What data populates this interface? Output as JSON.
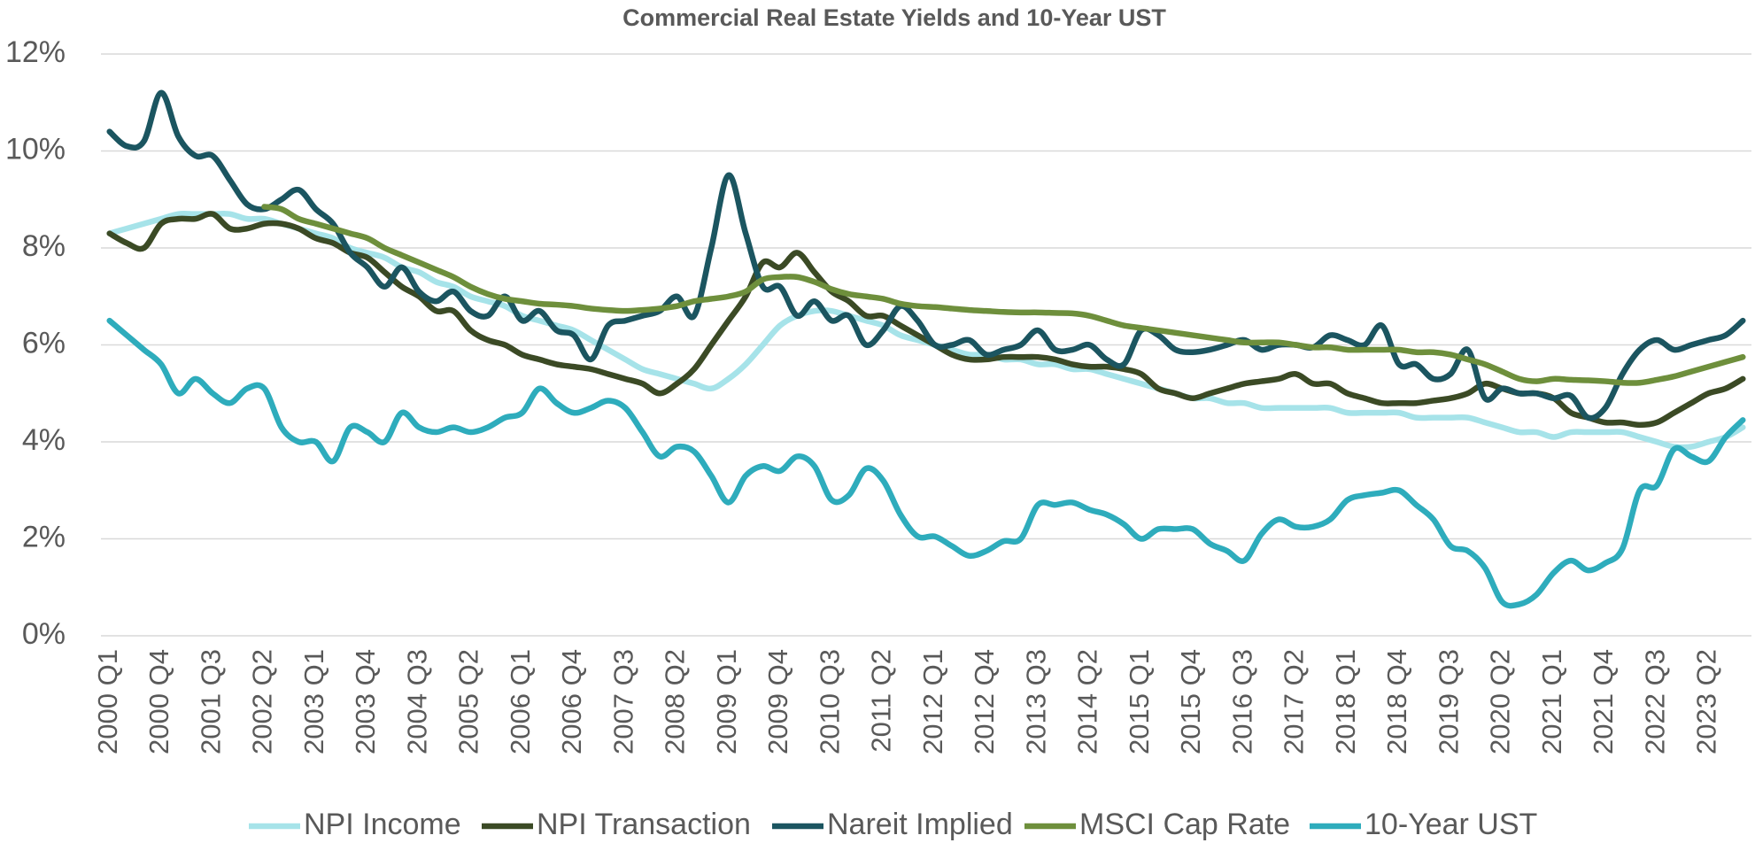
{
  "chart_data": {
    "type": "line",
    "title": "Commercial Real Estate Yields and 10-Year UST",
    "categories": [
      "2000 Q1",
      null,
      null,
      "2000 Q4",
      null,
      null,
      "2001 Q3",
      null,
      null,
      "2002 Q2",
      null,
      null,
      "2003 Q1",
      null,
      null,
      "2003 Q4",
      null,
      null,
      "2004 Q3",
      null,
      null,
      "2005 Q2",
      null,
      null,
      "2006 Q1",
      null,
      null,
      "2006 Q4",
      null,
      null,
      "2007 Q3",
      null,
      null,
      "2008 Q2",
      null,
      null,
      "2009 Q1",
      null,
      null,
      "2009 Q4",
      null,
      null,
      "2010 Q3",
      null,
      null,
      "2011 Q2",
      null,
      null,
      "2012 Q1",
      null,
      null,
      "2012 Q4",
      null,
      null,
      "2013 Q3",
      null,
      null,
      "2014 Q2",
      null,
      null,
      "2015 Q1",
      null,
      null,
      "2015 Q4",
      null,
      null,
      "2016 Q3",
      null,
      null,
      "2017 Q2",
      null,
      null,
      "2018 Q1",
      null,
      null,
      "2018 Q4",
      null,
      null,
      "2019 Q3",
      null,
      null,
      "2020 Q2",
      null,
      null,
      "2021 Q1",
      null,
      null,
      "2021 Q4",
      null,
      null,
      "2022 Q3",
      null,
      null,
      "2023 Q2",
      null,
      null
    ],
    "series": [
      {
        "name": "NPI Income",
        "color": "#a6e3e9",
        "values": [
          8.3,
          8.4,
          8.5,
          8.6,
          8.7,
          8.7,
          8.7,
          8.7,
          8.6,
          8.6,
          8.5,
          8.4,
          8.3,
          8.2,
          8.0,
          7.9,
          7.8,
          7.6,
          7.5,
          7.3,
          7.2,
          7.0,
          6.9,
          6.8,
          6.6,
          6.5,
          6.4,
          6.3,
          6.1,
          5.9,
          5.7,
          5.5,
          5.4,
          5.3,
          5.2,
          5.1,
          5.3,
          5.6,
          6.0,
          6.4,
          6.6,
          6.7,
          6.7,
          6.6,
          6.5,
          6.4,
          6.2,
          6.1,
          6.0,
          5.9,
          5.8,
          5.8,
          5.7,
          5.7,
          5.6,
          5.6,
          5.5,
          5.5,
          5.4,
          5.3,
          5.2,
          5.1,
          5.0,
          4.9,
          4.9,
          4.8,
          4.8,
          4.7,
          4.7,
          4.7,
          4.7,
          4.7,
          4.6,
          4.6,
          4.6,
          4.6,
          4.5,
          4.5,
          4.5,
          4.5,
          4.4,
          4.3,
          4.2,
          4.2,
          4.1,
          4.2,
          4.2,
          4.2,
          4.2,
          4.1,
          4.0,
          3.9,
          3.9,
          4.0,
          4.1,
          4.3
        ]
      },
      {
        "name": "NPI Transaction",
        "color": "#3b4a25",
        "values": [
          8.3,
          8.1,
          8.0,
          8.5,
          8.6,
          8.6,
          8.7,
          8.4,
          8.4,
          8.5,
          8.5,
          8.4,
          8.2,
          8.1,
          7.9,
          7.8,
          7.5,
          7.2,
          7.0,
          6.7,
          6.7,
          6.3,
          6.1,
          6.0,
          5.8,
          5.7,
          5.6,
          5.55,
          5.5,
          5.4,
          5.3,
          5.2,
          5.0,
          5.2,
          5.5,
          6.0,
          6.5,
          7.0,
          7.7,
          7.6,
          7.9,
          7.5,
          7.1,
          6.9,
          6.6,
          6.6,
          6.4,
          6.2,
          6.0,
          5.8,
          5.7,
          5.7,
          5.75,
          5.75,
          5.75,
          5.7,
          5.6,
          5.55,
          5.55,
          5.5,
          5.4,
          5.1,
          5.0,
          4.9,
          5.0,
          5.1,
          5.2,
          5.25,
          5.3,
          5.4,
          5.2,
          5.2,
          5.0,
          4.9,
          4.8,
          4.8,
          4.8,
          4.85,
          4.9,
          5.0,
          5.2,
          5.1,
          5.0,
          5.0,
          4.9,
          4.6,
          4.5,
          4.4,
          4.4,
          4.35,
          4.4,
          4.6,
          4.8,
          5.0,
          5.1,
          5.3
        ]
      },
      {
        "name": "Nareit Implied",
        "color": "#1b5560",
        "values": [
          10.4,
          10.1,
          10.2,
          11.2,
          10.3,
          9.9,
          9.9,
          9.4,
          8.9,
          8.8,
          9.0,
          9.2,
          8.8,
          8.5,
          7.9,
          7.6,
          7.2,
          7.6,
          7.1,
          6.9,
          7.1,
          6.7,
          6.6,
          7.0,
          6.5,
          6.7,
          6.3,
          6.2,
          5.7,
          6.4,
          6.5,
          6.6,
          6.7,
          7.0,
          6.6,
          8.0,
          9.5,
          8.3,
          7.2,
          7.2,
          6.6,
          6.9,
          6.5,
          6.6,
          6.0,
          6.3,
          6.8,
          6.5,
          6.0,
          6.0,
          6.1,
          5.8,
          5.9,
          6.0,
          6.3,
          5.9,
          5.9,
          6.0,
          5.7,
          5.6,
          6.3,
          6.2,
          5.9,
          5.85,
          5.9,
          6.0,
          6.1,
          5.9,
          6.0,
          6.0,
          5.95,
          6.2,
          6.1,
          6.0,
          6.4,
          5.6,
          5.6,
          5.3,
          5.4,
          5.9,
          4.9,
          5.1,
          5.0,
          5.0,
          4.9,
          4.95,
          4.5,
          4.7,
          5.4,
          5.9,
          6.1,
          5.9,
          6.0,
          6.1,
          6.2,
          6.5
        ]
      },
      {
        "name": "MSCI Cap Rate",
        "color": "#6e8f3c",
        "values": [
          null,
          null,
          null,
          null,
          null,
          null,
          null,
          null,
          null,
          8.85,
          8.8,
          8.6,
          8.5,
          8.4,
          8.3,
          8.2,
          8.0,
          7.85,
          7.7,
          7.55,
          7.4,
          7.2,
          7.05,
          6.95,
          6.9,
          6.85,
          6.83,
          6.8,
          6.75,
          6.72,
          6.7,
          6.72,
          6.75,
          6.8,
          6.9,
          6.95,
          7.0,
          7.1,
          7.35,
          7.4,
          7.4,
          7.3,
          7.15,
          7.05,
          7.0,
          6.95,
          6.85,
          6.8,
          6.78,
          6.75,
          6.72,
          6.7,
          6.68,
          6.67,
          6.67,
          6.66,
          6.65,
          6.6,
          6.5,
          6.4,
          6.35,
          6.3,
          6.25,
          6.2,
          6.15,
          6.1,
          6.05,
          6.05,
          6.05,
          6.0,
          5.95,
          5.95,
          5.9,
          5.9,
          5.9,
          5.9,
          5.85,
          5.85,
          5.8,
          5.7,
          5.6,
          5.45,
          5.3,
          5.25,
          5.3,
          5.28,
          5.27,
          5.25,
          5.22,
          5.22,
          5.28,
          5.35,
          5.45,
          5.55,
          5.65,
          5.75
        ]
      },
      {
        "name": "10-Year UST",
        "color": "#2eacbc",
        "values": [
          6.5,
          6.2,
          5.9,
          5.6,
          5.0,
          5.3,
          5.0,
          4.8,
          5.1,
          5.1,
          4.3,
          4.0,
          4.0,
          3.6,
          4.3,
          4.2,
          4.0,
          4.6,
          4.3,
          4.2,
          4.3,
          4.2,
          4.3,
          4.5,
          4.6,
          5.1,
          4.8,
          4.6,
          4.7,
          4.85,
          4.7,
          4.2,
          3.7,
          3.9,
          3.8,
          3.3,
          2.75,
          3.3,
          3.5,
          3.4,
          3.7,
          3.5,
          2.8,
          2.9,
          3.45,
          3.2,
          2.5,
          2.05,
          2.05,
          1.85,
          1.65,
          1.75,
          1.95,
          2.0,
          2.7,
          2.7,
          2.75,
          2.6,
          2.5,
          2.3,
          2.0,
          2.2,
          2.2,
          2.2,
          1.9,
          1.75,
          1.55,
          2.1,
          2.4,
          2.25,
          2.25,
          2.4,
          2.8,
          2.9,
          2.95,
          3.0,
          2.7,
          2.4,
          1.85,
          1.75,
          1.4,
          0.7,
          0.65,
          0.85,
          1.3,
          1.55,
          1.35,
          1.5,
          1.8,
          3.0,
          3.1,
          3.85,
          3.7,
          3.6,
          4.1,
          4.45
        ]
      }
    ],
    "ylim": [
      0,
      12
    ],
    "yticks": [
      {
        "value": 0,
        "label": "0%"
      },
      {
        "value": 2,
        "label": "2%"
      },
      {
        "value": 4,
        "label": "4%"
      },
      {
        "value": 6,
        "label": "6%"
      },
      {
        "value": 8,
        "label": "8%"
      },
      {
        "value": 10,
        "label": "10%"
      },
      {
        "value": 12,
        "label": "12%"
      }
    ],
    "grid": true,
    "legend": "bottom"
  }
}
